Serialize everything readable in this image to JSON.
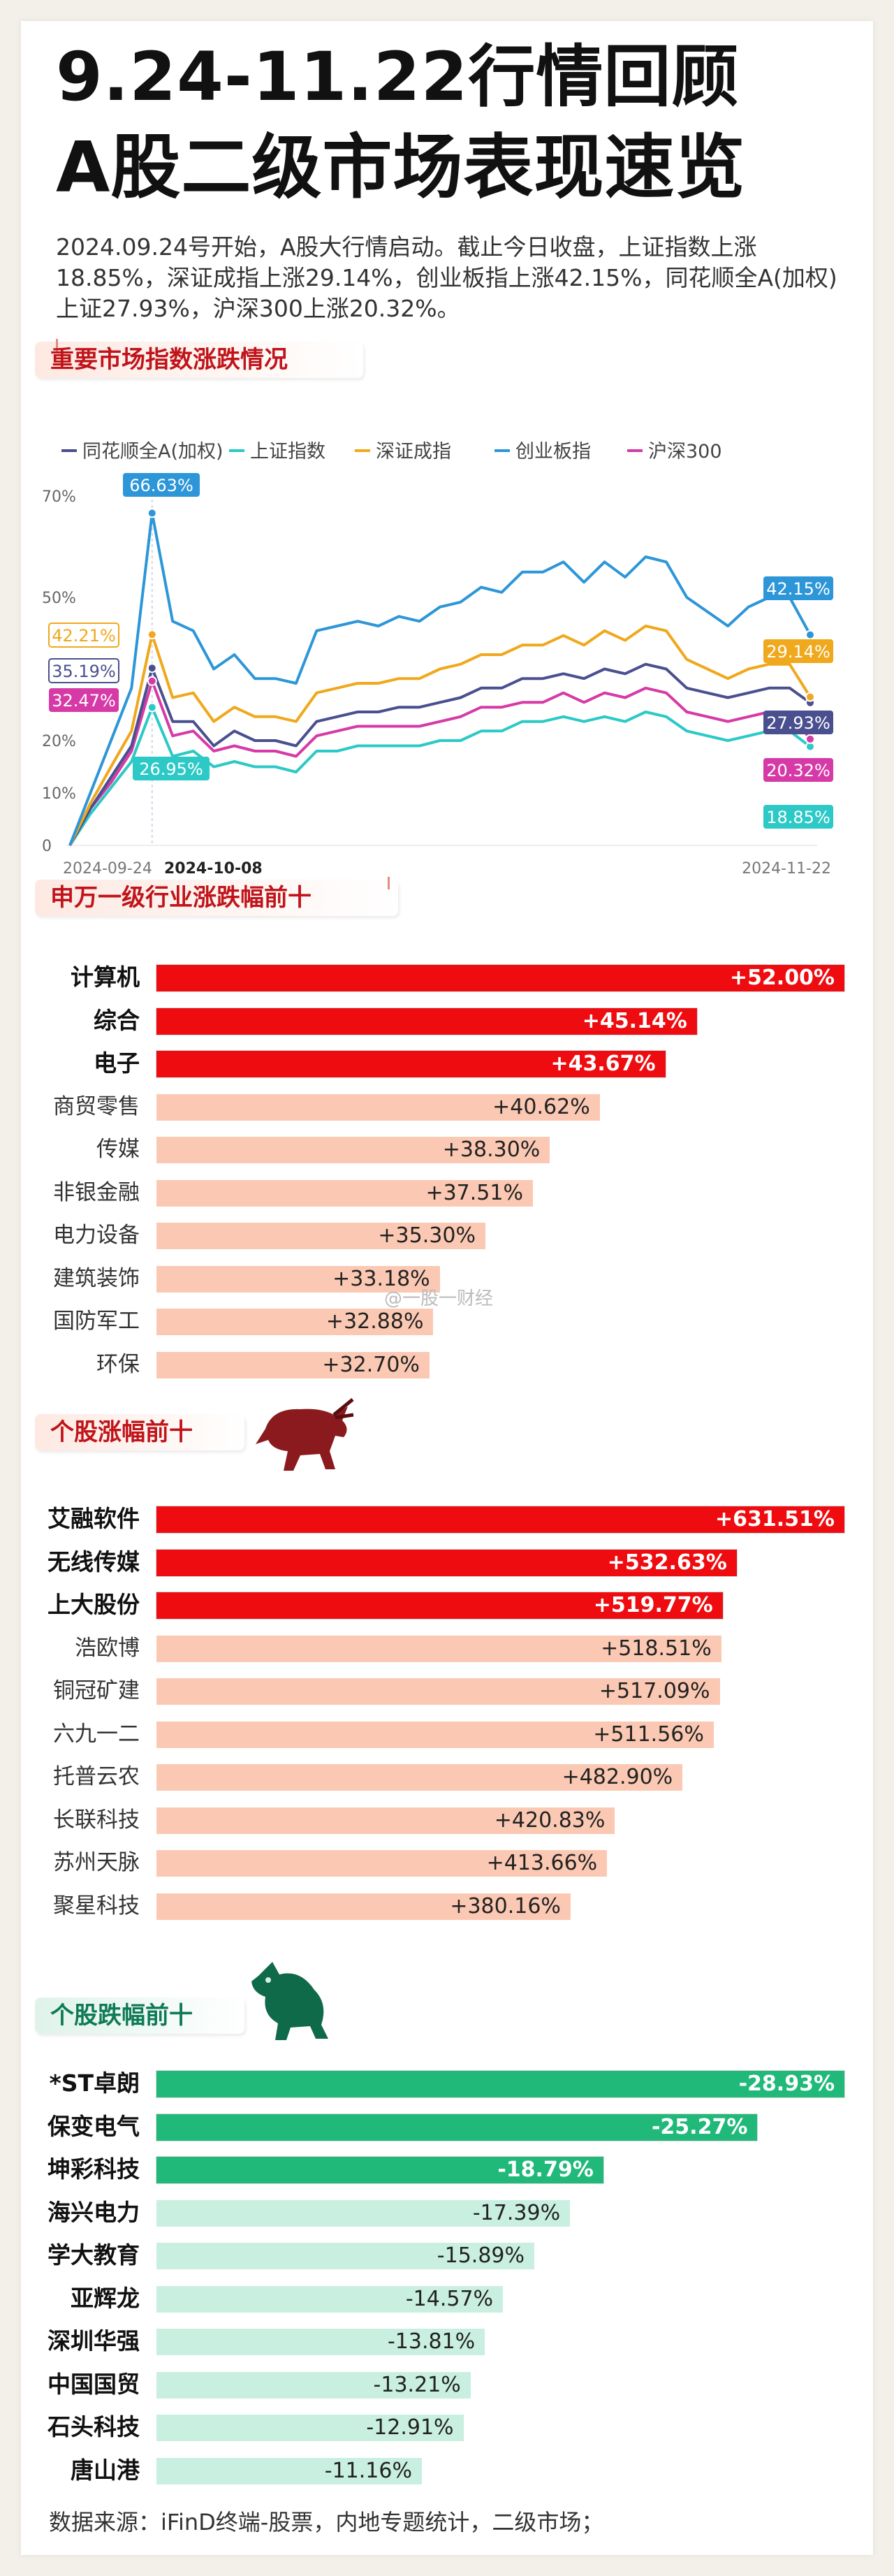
{
  "title": {
    "line1": "9.24-11.22行情回顾",
    "line2": "A股二级市场表现速览"
  },
  "intro": "2024.09.24号开始，A股大行情启动。截止今日收盘，上证指数上涨18.85%，深证成指上涨29.14%，创业板指上涨42.15%，同花顺全A(加权)上证27.93%，沪深300上涨20.32%。",
  "sections": {
    "index": "重要市场指数涨跌情况",
    "industry": "申万一级行业涨跌幅前十",
    "gainers": "个股涨幅前十",
    "losers": "个股跌幅前十"
  },
  "footer": "数据来源：iFinD终端-股票，内地专题统计，二级市场；",
  "watermark": "@一股一财经",
  "chart_data": [
    {
      "type": "line",
      "title": "重要市场指数涨跌情况",
      "x_tick_labels": [
        "2024-09-24",
        "2024-10-08",
        "2024-11-22"
      ],
      "y_tick_labels": [
        "0",
        "10%",
        "20%",
        "50%",
        "70%"
      ],
      "ylim": [
        0,
        70
      ],
      "legend_position": "top",
      "grid": false,
      "series": [
        {
          "name": "同花顺全A(加权)",
          "color": "#4a4f8f",
          "values": [
            0,
            7,
            13,
            19,
            35.19,
            24,
            24,
            19,
            22,
            20,
            20,
            19,
            24,
            25,
            26,
            26,
            27,
            27,
            28,
            29,
            31,
            31,
            33,
            33,
            34,
            33,
            35,
            34,
            36,
            35,
            31,
            30,
            29,
            30,
            31,
            31,
            27.93
          ],
          "peak_label": "35.19%",
          "end_label": "27.93%"
        },
        {
          "name": "上证指数",
          "color": "#2cc9c6",
          "values": [
            0,
            6,
            11,
            16,
            26.95,
            17,
            18,
            15,
            16,
            15,
            15,
            14,
            18,
            18,
            19,
            19,
            19,
            19,
            20,
            20,
            22,
            22,
            24,
            24,
            25,
            24,
            25,
            24,
            26,
            25,
            22,
            21,
            20,
            21,
            22,
            22,
            18.85
          ],
          "peak_label": "26.95%",
          "end_label": "18.85%"
        },
        {
          "name": "深证成指",
          "color": "#f0a81c",
          "values": [
            0,
            8,
            15,
            22,
            42.21,
            29,
            30,
            24,
            27,
            25,
            25,
            24,
            30,
            31,
            32,
            32,
            33,
            33,
            35,
            36,
            38,
            38,
            40,
            40,
            42,
            40,
            43,
            41,
            44,
            43,
            37,
            35,
            33,
            35,
            36,
            36,
            29.14
          ],
          "peak_label": "42.21%",
          "end_label": "29.14%"
        },
        {
          "name": "创业板指",
          "color": "#2d96d8",
          "values": [
            0,
            10,
            20,
            31,
            66.63,
            45,
            43,
            35,
            38,
            33,
            33,
            32,
            43,
            44,
            45,
            44,
            46,
            45,
            48,
            49,
            52,
            51,
            55,
            55,
            57,
            53,
            57,
            54,
            58,
            57,
            50,
            47,
            44,
            48,
            50,
            50,
            42.15
          ],
          "peak_label": "66.63%",
          "end_label": "42.15%"
        },
        {
          "name": "沪深300",
          "color": "#d63aa6",
          "values": [
            0,
            7,
            12,
            18,
            32.47,
            21,
            22,
            18,
            19,
            18,
            18,
            17,
            21,
            22,
            23,
            23,
            23,
            23,
            24,
            25,
            27,
            27,
            28,
            28,
            30,
            28,
            30,
            29,
            31,
            30,
            26,
            25,
            24,
            25,
            26,
            26,
            20.32
          ],
          "peak_label": "32.47%",
          "end_label": "20.32%"
        }
      ]
    },
    {
      "type": "bar",
      "title": "申万一级行业涨跌幅前十",
      "categories": [
        "计算机",
        "综合",
        "电子",
        "商贸零售",
        "传媒",
        "非银金融",
        "电力设备",
        "建筑装饰",
        "国防军工",
        "环保"
      ],
      "values": [
        52.0,
        45.14,
        43.67,
        40.62,
        38.3,
        37.51,
        35.3,
        33.18,
        32.88,
        32.7
      ],
      "labels": [
        "+52.00%",
        "+45.14%",
        "+43.67%",
        "+40.62%",
        "+38.30%",
        "+37.51%",
        "+35.30%",
        "+33.18%",
        "+32.88%",
        "+32.70%"
      ],
      "highlight_top": 3,
      "colors": {
        "top": "#ee0c10",
        "rest": "#fbc9b3"
      }
    },
    {
      "type": "bar",
      "title": "个股涨幅前十",
      "categories": [
        "艾融软件",
        "无线传媒",
        "上大股份",
        "浩欧博",
        "铜冠矿建",
        "六九一二",
        "托普云农",
        "长联科技",
        "苏州天脉",
        "聚星科技"
      ],
      "values": [
        631.51,
        532.63,
        519.77,
        518.51,
        517.09,
        511.56,
        482.9,
        420.83,
        413.66,
        380.16
      ],
      "labels": [
        "+631.51%",
        "+532.63%",
        "+519.77%",
        "+518.51%",
        "+517.09%",
        "+511.56%",
        "+482.90%",
        "+420.83%",
        "+413.66%",
        "+380.16%"
      ],
      "highlight_top": 3,
      "colors": {
        "top": "#ee0c10",
        "rest": "#fbc9b3"
      }
    },
    {
      "type": "bar",
      "title": "个股跌幅前十",
      "categories": [
        "*ST卓朗",
        "保变电气",
        "坤彩科技",
        "海兴电力",
        "学大教育",
        "亚辉龙",
        "深圳华强",
        "中国国贸",
        "石头科技",
        "唐山港"
      ],
      "values": [
        -28.93,
        -25.27,
        -18.79,
        -17.39,
        -15.89,
        -14.57,
        -13.81,
        -13.21,
        -12.91,
        -11.16
      ],
      "labels": [
        "-28.93%",
        "-25.27%",
        "-18.79%",
        "-17.39%",
        "-15.89%",
        "-14.57%",
        "-13.81%",
        "-13.21%",
        "-12.91%",
        "-11.16%"
      ],
      "highlight_top": 3,
      "colors": {
        "top": "#20b97a",
        "rest": "#c9efe0"
      }
    }
  ]
}
